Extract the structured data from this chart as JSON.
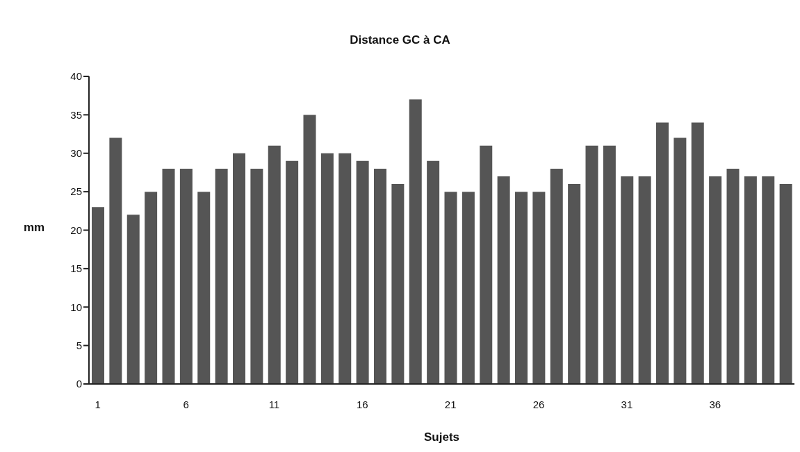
{
  "chart_data": {
    "type": "bar",
    "title": "Distance GC à CA",
    "xlabel": "Sujets",
    "ylabel": "mm",
    "categories": [
      "1",
      null,
      null,
      null,
      null,
      "6",
      null,
      null,
      null,
      null,
      "11",
      null,
      null,
      null,
      null,
      "16",
      null,
      null,
      null,
      null,
      "21",
      null,
      null,
      null,
      null,
      "26",
      null,
      null,
      null,
      null,
      "31",
      null,
      null,
      null,
      null,
      "36",
      null,
      null,
      null,
      null
    ],
    "values": [
      23,
      32,
      22,
      25,
      28,
      28,
      25,
      28,
      30,
      28,
      31,
      29,
      35,
      30,
      30,
      29,
      28,
      26,
      37,
      29,
      25,
      25,
      31,
      27,
      25,
      25,
      28,
      26,
      31,
      31,
      27,
      27,
      34,
      32,
      34,
      27,
      28,
      27,
      27,
      26
    ],
    "color": "#555555",
    "ylim": [
      0,
      40
    ],
    "yticks": [
      0,
      5,
      10,
      15,
      20,
      25,
      30,
      35,
      40
    ],
    "grid": false,
    "legend": false
  }
}
